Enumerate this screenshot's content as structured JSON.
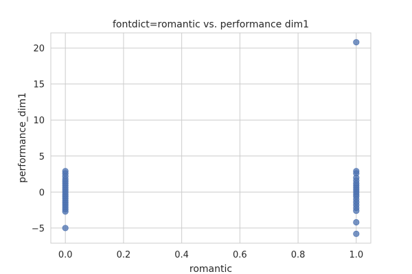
{
  "chart_data": {
    "type": "scatter",
    "title": "fontdict=romantic vs. performance dim1",
    "xlabel": "romantic",
    "ylabel": "performance_dim1",
    "xlim": [
      -0.05,
      1.05
    ],
    "ylim": [
      -7.1,
      22.1
    ],
    "xticks": [
      0.0,
      0.2,
      0.4,
      0.6,
      0.8,
      1.0
    ],
    "xtick_labels": [
      "0.0",
      "0.2",
      "0.4",
      "0.6",
      "0.8",
      "1.0"
    ],
    "yticks": [
      -5,
      0,
      5,
      10,
      15,
      20
    ],
    "ytick_labels": [
      "−5",
      "0",
      "5",
      "10",
      "15",
      "20"
    ],
    "grid": true,
    "series": [
      {
        "color": "#4c72b0",
        "points": [
          [
            0,
            2.9
          ],
          [
            0,
            2.6
          ],
          [
            0,
            2.2
          ],
          [
            0,
            1.8
          ],
          [
            0,
            1.5
          ],
          [
            0,
            1.2
          ],
          [
            0,
            0.9
          ],
          [
            0,
            0.6
          ],
          [
            0,
            0.3
          ],
          [
            0,
            0.0
          ],
          [
            0,
            -0.3
          ],
          [
            0,
            -0.6
          ],
          [
            0,
            -0.9
          ],
          [
            0,
            -1.2
          ],
          [
            0,
            -1.5
          ],
          [
            0,
            -1.8
          ],
          [
            0,
            -2.1
          ],
          [
            0,
            -2.4
          ],
          [
            0,
            -2.7
          ],
          [
            0,
            -5.0
          ],
          [
            1,
            20.8
          ],
          [
            1,
            2.9
          ],
          [
            1,
            2.6
          ],
          [
            1,
            2.0
          ],
          [
            1,
            1.6
          ],
          [
            1,
            1.2
          ],
          [
            1,
            0.9
          ],
          [
            1,
            0.6
          ],
          [
            1,
            0.3
          ],
          [
            1,
            0.0
          ],
          [
            1,
            -0.3
          ],
          [
            1,
            -0.6
          ],
          [
            1,
            -1.0
          ],
          [
            1,
            -1.4
          ],
          [
            1,
            -1.8
          ],
          [
            1,
            -2.2
          ],
          [
            1,
            -2.6
          ],
          [
            1,
            -4.2
          ],
          [
            1,
            -5.8
          ]
        ]
      }
    ]
  }
}
